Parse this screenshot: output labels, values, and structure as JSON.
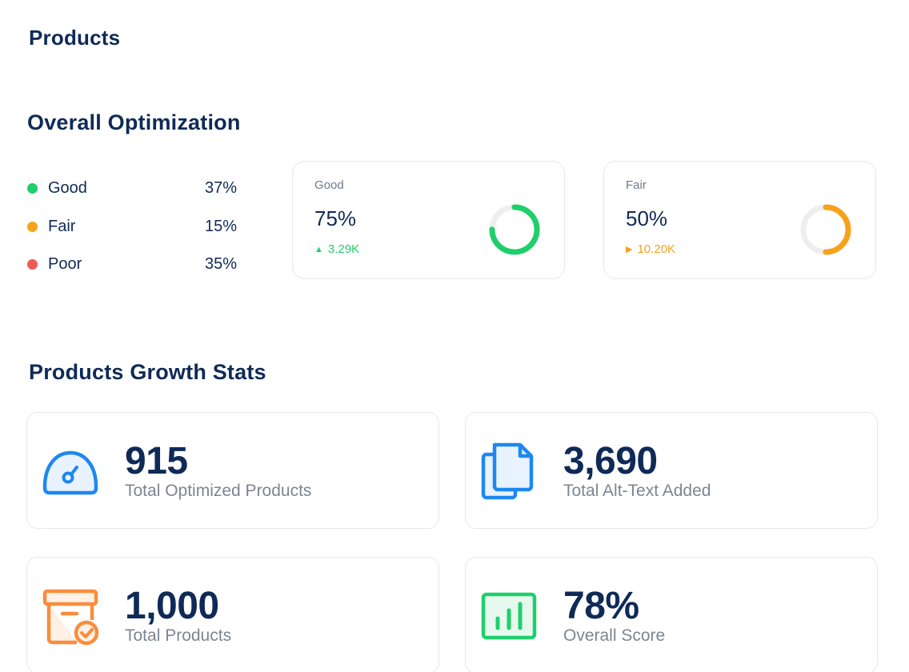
{
  "page": {
    "title": "Products"
  },
  "overall_optimization": {
    "title": "Overall Optimization",
    "legend": [
      {
        "label": "Good",
        "value": "37%",
        "color": "#1fcf6b"
      },
      {
        "label": "Fair",
        "value": "15%",
        "color": "#f7a21b"
      },
      {
        "label": "Poor",
        "value": "35%",
        "color": "#ee5a55"
      }
    ],
    "cards": [
      {
        "label": "Good",
        "value": "75%",
        "percent": 75,
        "delta": "3.29K",
        "delta_direction": "up",
        "color": "#1fcf6b",
        "track_color": "#eeeeee"
      },
      {
        "label": "Fair",
        "value": "50%",
        "percent": 50,
        "delta": "10.20K",
        "delta_direction": "right",
        "color": "#f7a21b",
        "track_color": "#eeeeee"
      }
    ]
  },
  "growth_stats": {
    "title": "Products Growth Stats",
    "items": [
      {
        "value": "915",
        "label": "Total Optimized Products",
        "icon": "speedometer-icon",
        "color": "#1e88f0"
      },
      {
        "value": "3,690",
        "label": "Total Alt-Text Added",
        "icon": "copy-documents-icon",
        "color": "#1e88f0"
      },
      {
        "value": "1,000",
        "label": "Total Products",
        "icon": "archive-check-icon",
        "color": "#fb8c3c"
      },
      {
        "value": "78%",
        "label": "Overall Score",
        "icon": "bar-chart-icon",
        "color": "#1fcf6b"
      }
    ]
  }
}
